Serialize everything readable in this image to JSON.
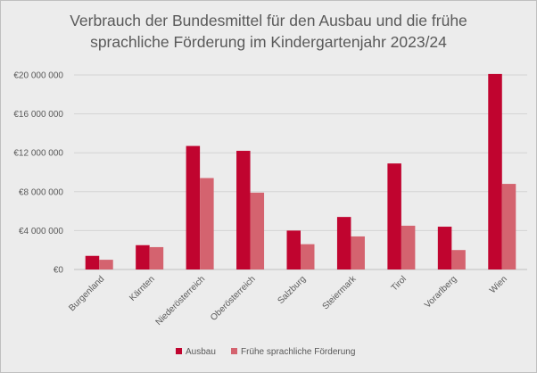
{
  "chart_data": {
    "type": "bar",
    "title_lines": [
      "Verbrauch der Bundesmittel für den Ausbau und die frühe",
      "sprachliche Förderung im Kindergartenjahr 2023/24"
    ],
    "categories": [
      "Burgenland",
      "Kärnten",
      "Niederösterreich",
      "Oberösterreich",
      "Salzburg",
      "Steiermark",
      "Tirol",
      "Vorarlberg",
      "Wien"
    ],
    "series": [
      {
        "name": "Ausbau",
        "color": "#c0042f",
        "values": [
          1400000,
          2500000,
          12700000,
          12200000,
          4000000,
          5400000,
          10900000,
          4400000,
          20100000
        ]
      },
      {
        "name": "Frühe sprachliche Förderung",
        "color": "#d4636f",
        "values": [
          1000000,
          2300000,
          9400000,
          7900000,
          2600000,
          3400000,
          4500000,
          2000000,
          8800000
        ]
      }
    ],
    "ylim": [
      0,
      20000000
    ],
    "yticks": [
      0,
      4000000,
      8000000,
      12000000,
      16000000,
      20000000
    ],
    "ytick_labels": [
      "€0",
      "€4 000 000",
      "€8 000 000",
      "€12 000 000",
      "€16 000 000",
      "€20 000 000"
    ],
    "grid": true,
    "legend_position": "bottom"
  }
}
